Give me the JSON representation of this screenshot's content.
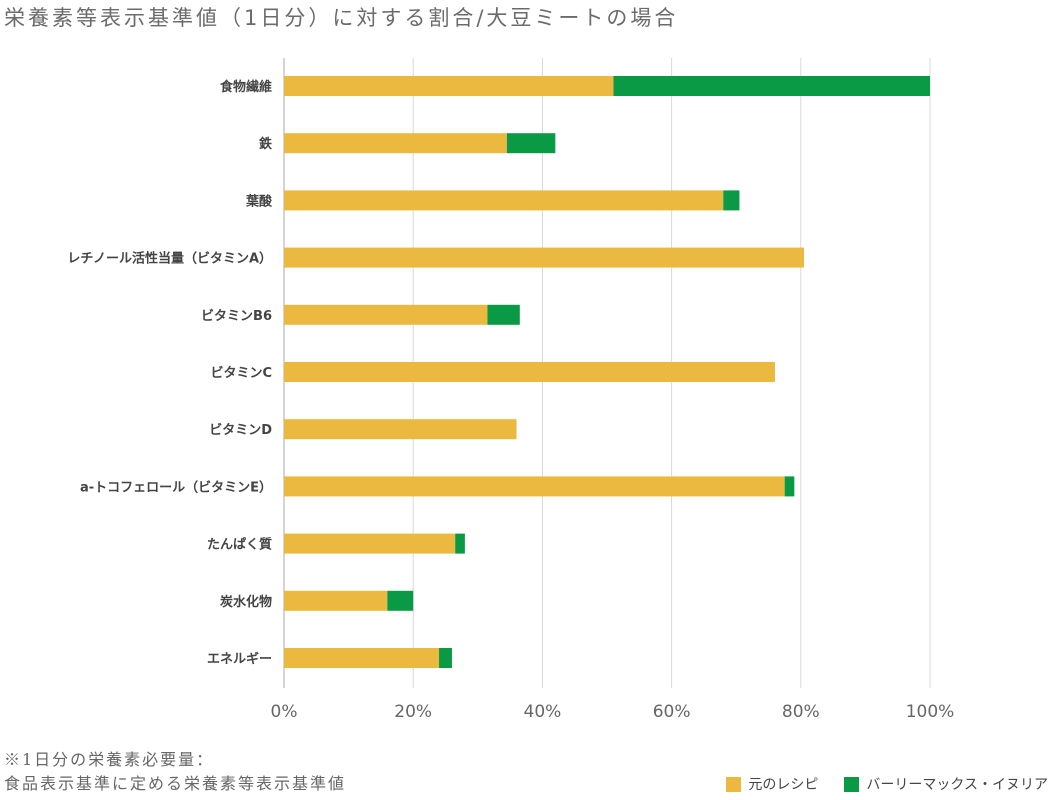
{
  "title": "栄養素等表示基準値（1日分）に対する割合/大豆ミートの場合",
  "footnote": {
    "line1": "※1日分の栄養素必要量：",
    "line2": "食品表示基準に定める栄養素等表示基準値"
  },
  "colors": {
    "original": "#EBB93F",
    "barley": "#0A9A45",
    "grid": "#d8d8d8",
    "axis": "#aaaaaa"
  },
  "chart_data": {
    "type": "bar",
    "orientation": "horizontal",
    "stacked": true,
    "categories": [
      "食物繊維",
      "鉄",
      "葉酸",
      "レチノール活性当量（ビタミンA）",
      "ビタミンB6",
      "ビタミンC",
      "ビタミンD",
      "a-トコフェロール（ビタミンE）",
      "たんぱく質",
      "炭水化物",
      "エネルギー"
    ],
    "series": [
      {
        "name": "元のレシピ",
        "values": [
          51,
          34.5,
          68,
          80.5,
          31.5,
          76,
          36,
          77.5,
          26.5,
          16,
          24
        ]
      },
      {
        "name": "バーリーマックス・イヌリア",
        "values": [
          49,
          7.5,
          2.5,
          0,
          5,
          0,
          0,
          1.5,
          1.5,
          4,
          2
        ]
      }
    ],
    "xlim": [
      0,
      100
    ],
    "xticks": [
      "0%",
      "20%",
      "40%",
      "60%",
      "80%",
      "100%"
    ],
    "xtick_values": [
      0,
      20,
      40,
      60,
      80,
      100
    ],
    "grid": true,
    "legend_position": "bottom-right"
  }
}
